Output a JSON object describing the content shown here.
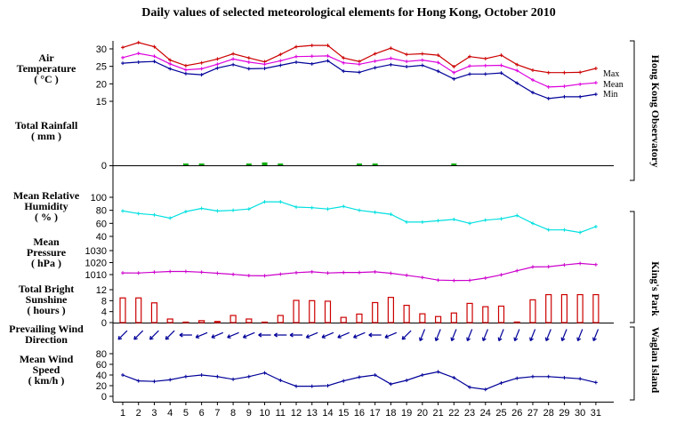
{
  "title": "Daily values of selected meteorological elements for Hong Kong, October 2010",
  "colors": {
    "max": "#cc0000",
    "mean": "#dd00dd",
    "min": "#000099",
    "rain": "#00aa00",
    "rh": "#00e0e0",
    "pressure": "#cc00cc",
    "sunshine": "#cc0000",
    "wind_dir": "#000099",
    "wind_speed": "#000099"
  },
  "station_labels": {
    "hko": "Hong Kong Observatory",
    "kp": "King's Park",
    "wgl": "Waglan Island"
  },
  "chart_data": {
    "type": "line",
    "x_label": "",
    "days": [
      1,
      2,
      3,
      4,
      5,
      6,
      7,
      8,
      9,
      10,
      11,
      12,
      13,
      14,
      15,
      16,
      17,
      18,
      19,
      20,
      21,
      22,
      23,
      24,
      25,
      26,
      27,
      28,
      29,
      30,
      31
    ],
    "panels": {
      "air_temperature": {
        "label_lines": [
          "Air",
          "Temperature",
          "( °C )"
        ],
        "ticks": [
          15,
          20,
          25,
          30
        ],
        "ylim": [
          12,
          33
        ],
        "series": [
          {
            "name": "Max",
            "values": [
              30.4,
              31.8,
              30.6,
              26.8,
              25.2,
              26.0,
              27.1,
              28.6,
              27.4,
              26.3,
              28.4,
              30.6,
              31.0,
              31.0,
              27.4,
              26.4,
              28.6,
              30.2,
              28.4,
              28.6,
              28.2,
              24.9,
              27.8,
              27.2,
              28.2,
              25.5,
              23.9,
              23.2,
              23.2,
              23.3,
              24.4
            ]
          },
          {
            "name": "Mean",
            "values": [
              27.5,
              28.7,
              27.9,
              25.7,
              24.0,
              24.3,
              25.6,
              27.1,
              26.2,
              25.6,
              26.6,
              27.8,
              27.9,
              28.0,
              26.0,
              25.6,
              26.5,
              27.3,
              26.4,
              26.8,
              26.1,
              23.2,
              25.1,
              25.2,
              25.3,
              23.8,
              21.1,
              19.1,
              19.3,
              19.9,
              20.3
            ]
          },
          {
            "name": "Min",
            "values": [
              25.9,
              26.2,
              26.4,
              24.3,
              22.9,
              22.6,
              24.5,
              25.5,
              24.3,
              24.4,
              25.3,
              26.2,
              25.7,
              26.6,
              23.6,
              23.3,
              24.6,
              25.5,
              24.9,
              25.3,
              23.6,
              21.4,
              22.8,
              22.8,
              23.1,
              20.2,
              17.5,
              15.8,
              16.3,
              16.3,
              17.0
            ]
          }
        ]
      },
      "total_rainfall": {
        "label_lines": [
          "Total Rainfall",
          "( mm )"
        ],
        "ticks": [
          0
        ],
        "values": [
          0,
          0,
          0,
          0,
          0.2,
          0.1,
          0,
          0,
          0.1,
          0.4,
          0.2,
          0,
          0,
          0,
          0,
          0.1,
          0.1,
          0,
          0,
          0,
          0,
          0.1,
          0,
          0,
          0,
          0,
          0,
          0,
          0,
          0,
          0
        ]
      },
      "mean_relative_humidity": {
        "label_lines": [
          "Mean Relative",
          "Humidity",
          "( % )"
        ],
        "ticks": [
          40,
          60,
          80,
          100
        ],
        "ylim": [
          30,
          112
        ],
        "values": [
          79,
          75,
          73,
          68,
          78,
          83,
          79,
          80,
          82,
          93,
          93,
          85,
          84,
          82,
          86,
          80,
          77,
          74,
          62,
          62,
          64,
          66,
          60,
          65,
          67,
          72,
          60,
          50,
          50,
          46,
          55
        ]
      },
      "mean_pressure": {
        "label_lines": [
          "Mean",
          "Pressure",
          "( hPa )"
        ],
        "ticks": [
          1010,
          1020,
          1030
        ],
        "ylim": [
          1003,
          1033
        ],
        "values": [
          1011.4,
          1011.3,
          1012.0,
          1012.6,
          1012.6,
          1012.0,
          1011.1,
          1010.2,
          1009.2,
          1009.0,
          1010.4,
          1011.6,
          1012.3,
          1011.3,
          1011.8,
          1011.8,
          1012.3,
          1011.1,
          1009.4,
          1007.6,
          1005.4,
          1005.1,
          1005.2,
          1007.1,
          1009.8,
          1013.2,
          1016.4,
          1016.6,
          1018.1,
          1019.3,
          1018.3
        ]
      },
      "total_bright_sunshine": {
        "label_lines": [
          "Total Bright",
          "Sunshine",
          "( hours )"
        ],
        "ticks": [
          0,
          4,
          8,
          12
        ],
        "ylim": [
          0,
          12
        ],
        "values": [
          9.0,
          9.0,
          7.2,
          1.3,
          0,
          0.7,
          0.4,
          2.6,
          1.3,
          0,
          2.6,
          8.1,
          8.0,
          7.8,
          1.9,
          3.1,
          7.3,
          9.2,
          6.3,
          3.2,
          2.2,
          3.5,
          7.0,
          5.8,
          6.0,
          0.2,
          8.3,
          10.2,
          10.2,
          10.2,
          10.2
        ]
      },
      "prevailing_wind_direction": {
        "label_lines": [
          "Prevailing Wind",
          "Direction"
        ],
        "directions_deg": [
          45,
          45,
          45,
          45,
          90,
          67,
          67,
          67,
          67,
          90,
          90,
          90,
          67,
          67,
          67,
          67,
          90,
          67,
          45,
          22,
          22,
          22,
          22,
          22,
          22,
          22,
          22,
          22,
          22,
          22,
          22
        ]
      },
      "mean_wind_speed": {
        "label_lines": [
          "Mean Wind",
          "Speed",
          "( km/h )"
        ],
        "ticks": [
          0,
          20,
          40,
          60,
          80
        ],
        "ylim": [
          0,
          100
        ],
        "values": [
          40,
          29,
          28,
          31,
          37,
          40,
          37,
          32,
          37,
          44,
          30,
          19,
          19,
          20,
          29,
          36,
          40,
          23,
          30,
          40,
          46,
          35,
          17,
          13,
          25,
          34,
          37,
          37,
          35,
          33,
          26
        ]
      }
    }
  }
}
